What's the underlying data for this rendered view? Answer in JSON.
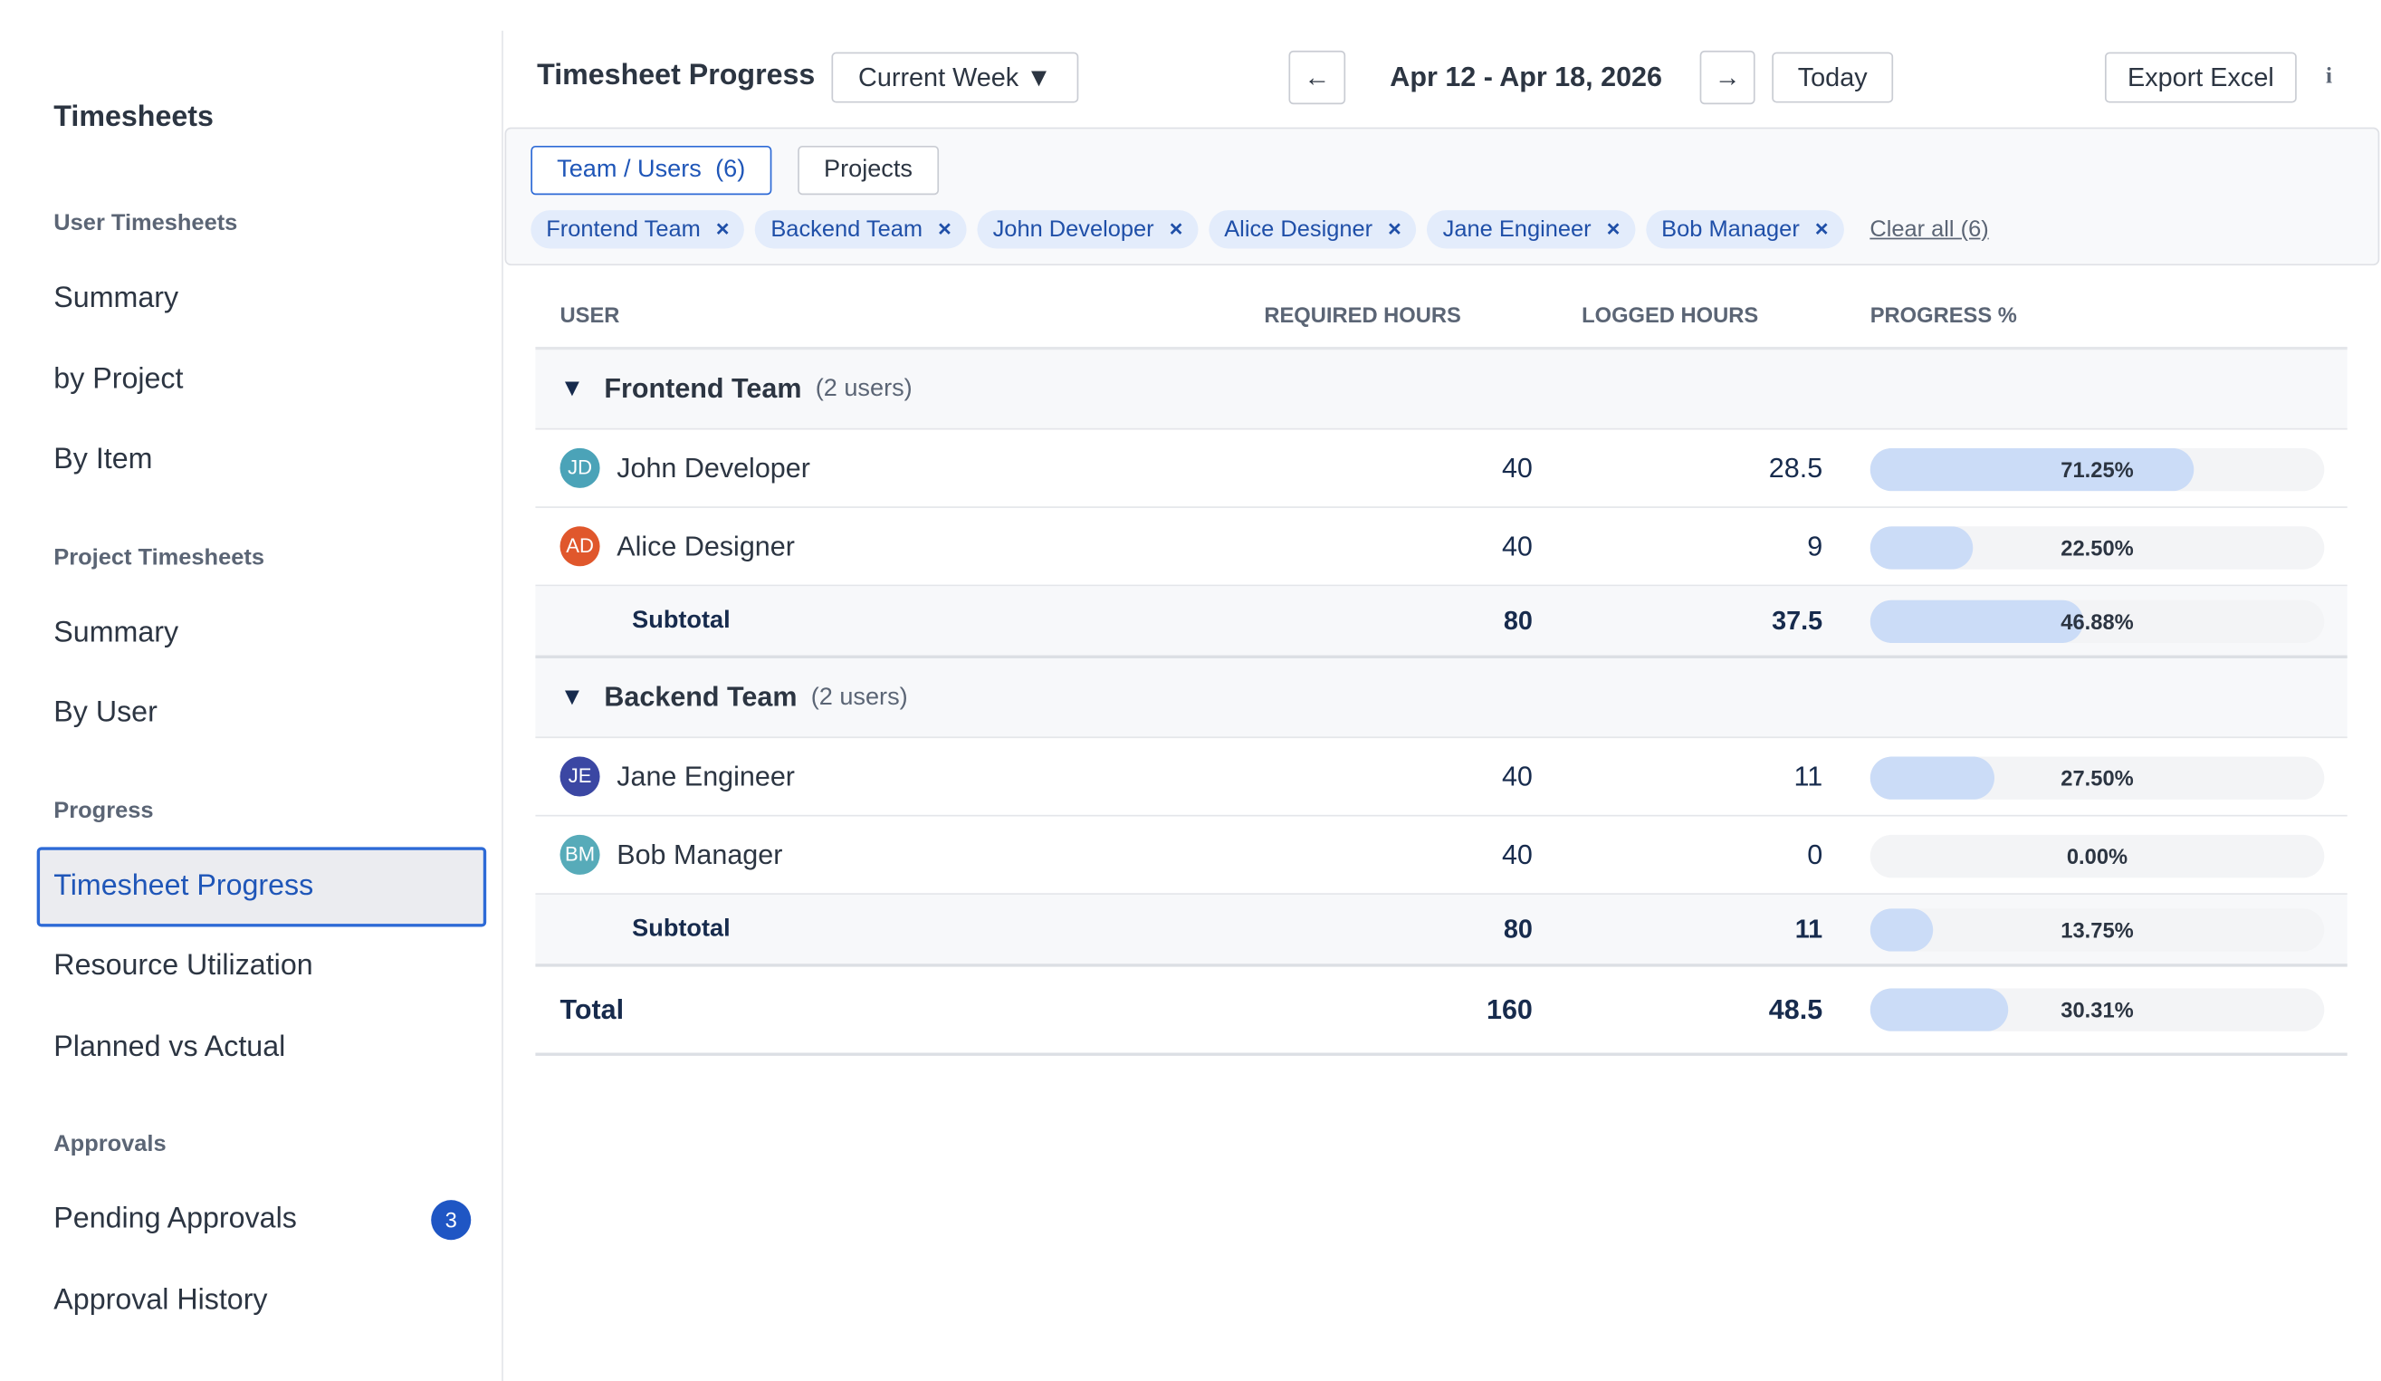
{
  "sidebar": {
    "title": "Timesheets",
    "sections": [
      {
        "heading": "User Timesheets",
        "items": [
          {
            "label": "Summary"
          },
          {
            "label": "by Project"
          },
          {
            "label": "By Item"
          }
        ]
      },
      {
        "heading": "Project Timesheets",
        "items": [
          {
            "label": "Summary"
          },
          {
            "label": "By User"
          }
        ]
      },
      {
        "heading": "Progress",
        "items": [
          {
            "label": "Timesheet Progress",
            "active": true
          },
          {
            "label": "Resource Utilization"
          },
          {
            "label": "Planned vs Actual"
          }
        ]
      },
      {
        "heading": "Approvals",
        "items": [
          {
            "label": "Pending Approvals",
            "badge": 3
          },
          {
            "label": "Approval History"
          }
        ]
      }
    ]
  },
  "header": {
    "title": "Timesheet Progress",
    "range_select": "Current Week",
    "date_range": "Apr 12 - Apr 18, 2026",
    "today": "Today",
    "export": "Export Excel"
  },
  "filters": {
    "tabs": [
      {
        "label": "Team / Users",
        "count": "(6)",
        "selected": true
      },
      {
        "label": "Projects"
      }
    ],
    "chips": [
      "Frontend Team",
      "Backend Team",
      "John Developer",
      "Alice Designer",
      "Jane Engineer",
      "Bob Manager"
    ],
    "clear": "Clear all (6)"
  },
  "table": {
    "columns": [
      "USER",
      "REQUIRED HOURS",
      "LOGGED HOURS",
      "PROGRESS %"
    ],
    "groups": [
      {
        "name": "Frontend Team",
        "count": "(2 users)",
        "rows": [
          {
            "initials": "JD",
            "color": "#4ba3b8",
            "name": "John Developer",
            "required": 40,
            "logged": 28.5,
            "progress": "71.25%"
          },
          {
            "initials": "AD",
            "color": "#e0572c",
            "name": "Alice Designer",
            "required": 40,
            "logged": 9,
            "progress": "22.50%"
          }
        ],
        "subtotal": {
          "label": "Subtotal",
          "required": 80,
          "logged": 37.5,
          "progress": "46.88%"
        }
      },
      {
        "name": "Backend Team",
        "count": "(2 users)",
        "rows": [
          {
            "initials": "JE",
            "color": "#3b47a3",
            "name": "Jane Engineer",
            "required": 40,
            "logged": 11,
            "progress": "27.50%"
          },
          {
            "initials": "BM",
            "color": "#57abb9",
            "name": "Bob Manager",
            "required": 40,
            "logged": 0,
            "progress": "0.00%"
          }
        ],
        "subtotal": {
          "label": "Subtotal",
          "required": 80,
          "logged": 11,
          "progress": "13.75%"
        }
      }
    ],
    "total": {
      "label": "Total",
      "required": 160,
      "logged": 48.5,
      "progress": "30.31%"
    }
  }
}
